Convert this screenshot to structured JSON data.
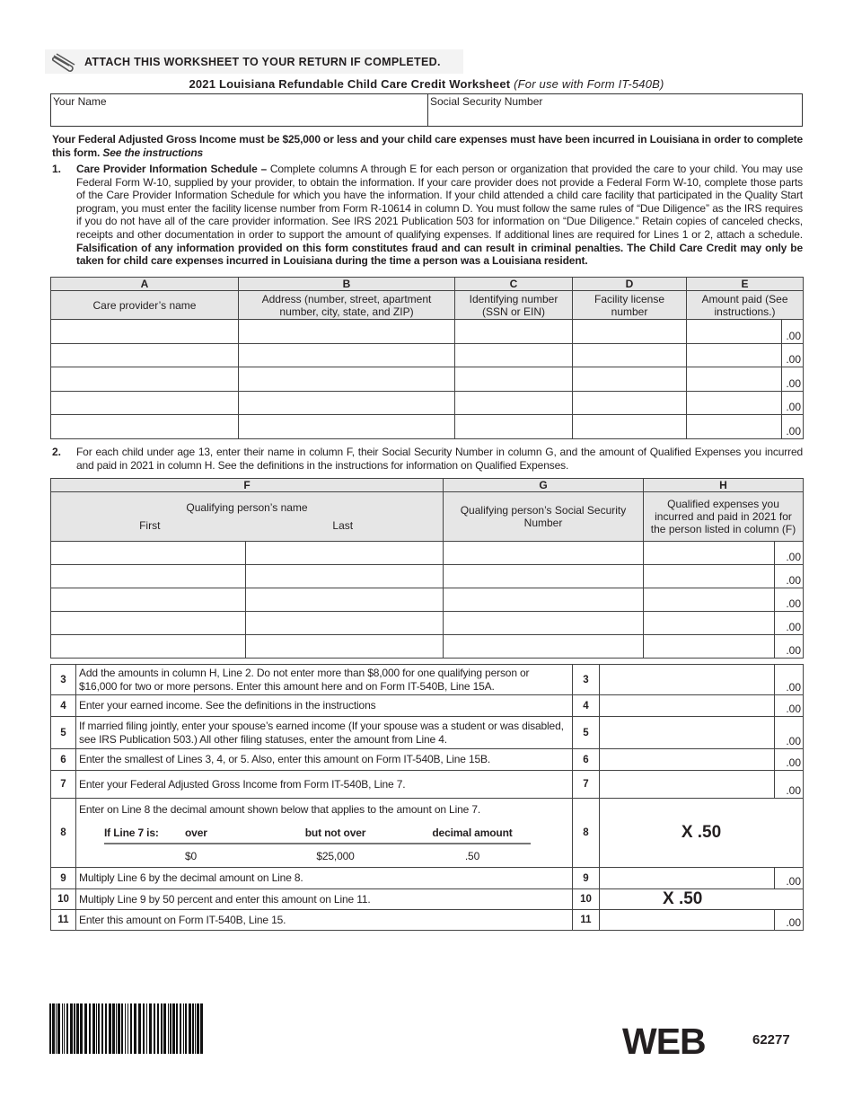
{
  "attach_notice": "ATTACH THIS WORKSHEET TO YOUR RETURN IF COMPLETED.",
  "title": {
    "main": "2021 Louisiana Refundable Child Care Credit Worksheet",
    "sub": "(For use with Form IT-540B)"
  },
  "header_fields": {
    "name_label": "Your Name",
    "ssn_label": "Social Security Number"
  },
  "intro": {
    "bold": "Your Federal Adjusted Gross Income must be $25,000 or less and your child care expenses must have been incurred in Louisiana in order to complete this form.",
    "italic": "See the instructions"
  },
  "section1": {
    "num": "1.",
    "lead": "Care Provider Information Schedule –",
    "body": "Complete columns A through E for each person or organization that provided the care to your child. You may use Federal Form W-10, supplied by your provider, to obtain the information. If your care provider does not provide a Federal Form W-10, complete those parts of the Care Provider Information Schedule for which you have the information. If your child attended a child care facility that participated in the Quality Start program, you must enter the facility license number from Form R-10614 in column D. You must follow the same rules of “Due Diligence” as the IRS requires if you do not have all of the care provider information. See IRS 2021 Publication 503 for information on “Due Diligence.” Retain copies of canceled checks, receipts and other documentation in order to support the amount of qualifying expenses. If additional lines are required for Lines 1 or 2, attach a schedule.",
    "warning": "Falsification of any information provided on this form constitutes fraud and can result in criminal penalties. The Child Care Credit may only be taken for child care expenses incurred in Louisiana during the time a person was a Louisiana resident.",
    "columns": [
      {
        "letter": "A",
        "label": "Care provider’s name"
      },
      {
        "letter": "B",
        "label": "Address (number, street, apartment number, city, state, and ZIP)"
      },
      {
        "letter": "C",
        "label": "Identifying number (SSN or EIN)"
      },
      {
        "letter": "D",
        "label": "Facility license number"
      },
      {
        "letter": "E",
        "label": "Amount paid (See instructions.)"
      }
    ],
    "cents": ".00"
  },
  "section2": {
    "num": "2.",
    "body": "For each child under age 13, enter their name in column F, their Social Security Number in column G, and the amount of Qualified Expenses you incurred and paid in 2021 in column H. See the definitions in the instructions for information on Qualified Expenses.",
    "columns": {
      "F": "F",
      "G": "G",
      "H": "H"
    },
    "f_label": "Qualifying person’s name",
    "f_first": "First",
    "f_last": "Last",
    "g_label": "Qualifying person’s Social Security Number",
    "h_label": "Qualified expenses you incurred and paid in 2021 for the person listed in column (F)",
    "cents": ".00"
  },
  "lines": [
    {
      "num": "3",
      "text": "Add the amounts in column H, Line 2. Do not enter more than $8,000 for one qualifying person or $16,000 for two or more persons. Enter this amount here and on Form IT-540B, Line 15A.",
      "cents": ".00"
    },
    {
      "num": "4",
      "text": "Enter your earned income. See the definitions in the instructions",
      "cents": ".00"
    },
    {
      "num": "5",
      "text": "If married filing jointly, enter your spouse’s earned income (If your spouse was a student or was disabled, see IRS Publication 503.) All other filing statuses, enter the amount from Line 4.",
      "cents": ".00"
    },
    {
      "num": "6",
      "text": "Enter the smallest of Lines 3, 4, or 5. Also, enter this amount on Form IT-540B, Line 15B.",
      "cents": ".00"
    },
    {
      "num": "7",
      "text": "Enter your Federal Adjusted Gross Income from Form IT-540B, Line 7.",
      "cents": ".00"
    },
    {
      "num": "8",
      "text": "Enter on Line 8 the decimal amount shown below that applies to the amount on Line 7.",
      "value": "X .50",
      "table": {
        "h0": "If Line 7 is:",
        "h1": "over",
        "h2": "but not over",
        "h3": "decimal amount",
        "v1": "$0",
        "v2": "$25,000",
        "v3": ".50"
      }
    },
    {
      "num": "9",
      "text": "Multiply Line 6 by the decimal amount on Line 8.",
      "cents": ".00"
    },
    {
      "num": "10",
      "text": "Multiply Line 9 by 50 percent and enter this amount on Line 11.",
      "value": "X .50"
    },
    {
      "num": "11",
      "text": "Enter this amount on Form IT-540B, Line 15.",
      "cents": ".00"
    }
  ],
  "footer": {
    "web": "WEB",
    "form_code": "62277"
  }
}
